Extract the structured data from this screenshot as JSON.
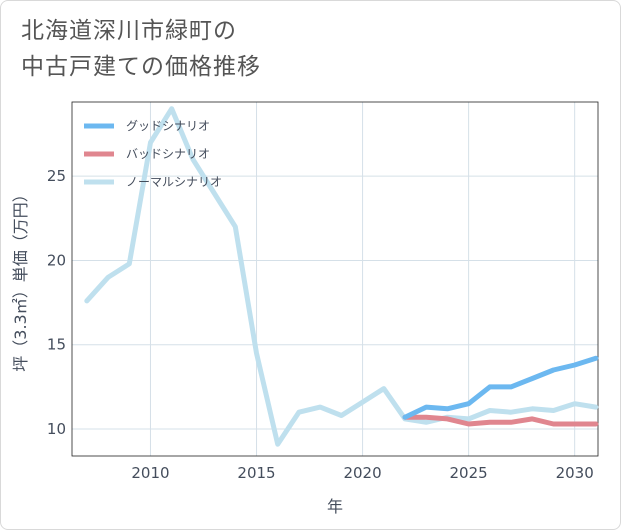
{
  "header": {
    "title_line1": "北海道深川市緑町の",
    "title_line2": "中古戸建ての価格推移"
  },
  "chart_data": {
    "type": "line",
    "title": "北海道深川市緑町の中古戸建ての価格推移",
    "xlabel": "年",
    "ylabel": "坪（3.3㎡）単価（万円）",
    "xlim": [
      2006.3,
      2031.1
    ],
    "ylim": [
      8.4,
      29.4
    ],
    "xticks": [
      2010,
      2015,
      2020,
      2025,
      2030
    ],
    "yticks": [
      10,
      15,
      20,
      25
    ],
    "grid": true,
    "legend_position": "top-left",
    "series": [
      {
        "name": "グッドシナリオ",
        "color": "#6cb8f0",
        "x": [
          2022,
          2023,
          2024,
          2025,
          2026,
          2027,
          2028,
          2029,
          2030,
          2031
        ],
        "values": [
          10.7,
          11.3,
          11.2,
          11.5,
          12.5,
          12.5,
          13.0,
          13.5,
          13.8,
          14.2
        ]
      },
      {
        "name": "バッドシナリオ",
        "color": "#e0868f",
        "x": [
          2022,
          2023,
          2024,
          2025,
          2026,
          2027,
          2028,
          2029,
          2030,
          2031
        ],
        "values": [
          10.7,
          10.7,
          10.6,
          10.3,
          10.4,
          10.4,
          10.6,
          10.3,
          10.3,
          10.3
        ]
      },
      {
        "name": "ノーマルシナリオ",
        "color": "#bfe0ee",
        "x": [
          2007,
          2008,
          2009,
          2010,
          2011,
          2012,
          2013,
          2014,
          2015,
          2016,
          2017,
          2018,
          2019,
          2020,
          2021,
          2022,
          2023,
          2024,
          2025,
          2026,
          2027,
          2028,
          2029,
          2030,
          2031
        ],
        "values": [
          17.6,
          19.0,
          19.8,
          27.0,
          29.0,
          26.0,
          24.0,
          22.0,
          14.5,
          9.1,
          11.0,
          11.3,
          10.8,
          11.6,
          12.4,
          10.6,
          10.4,
          10.7,
          10.6,
          11.1,
          11.0,
          11.2,
          11.1,
          11.5,
          11.3
        ]
      }
    ]
  }
}
